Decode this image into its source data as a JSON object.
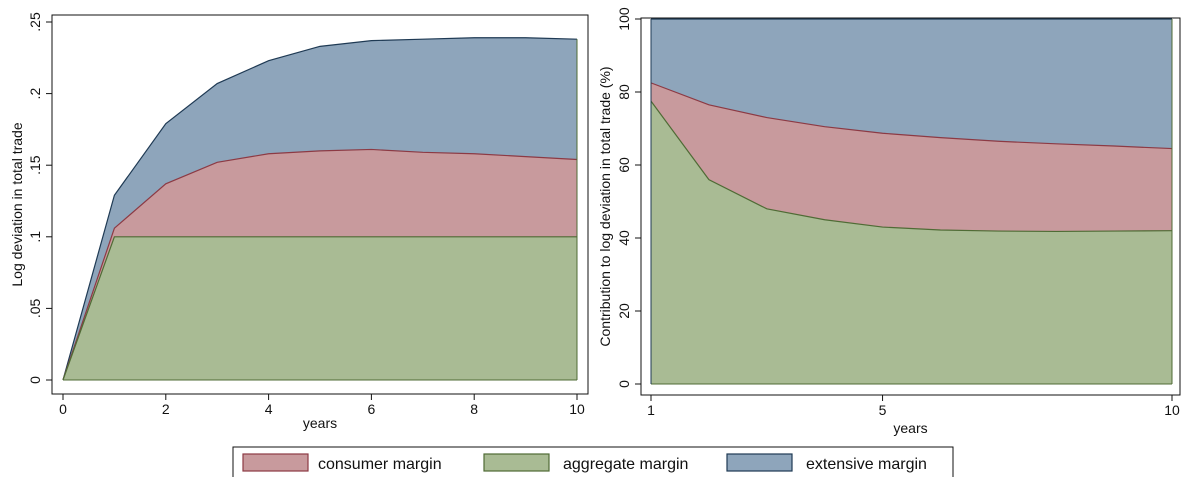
{
  "chart_data": [
    {
      "type": "area",
      "stacked": true,
      "xlabel": "years",
      "ylabel": "Log deviation in total trade",
      "xlim": [
        0,
        10
      ],
      "ylim": [
        0,
        0.25
      ],
      "xticks": [
        0,
        2,
        4,
        6,
        8,
        10
      ],
      "xtick_labels": [
        "0",
        "2",
        "4",
        "6",
        "8",
        "10"
      ],
      "yticks": [
        0,
        0.05,
        0.1,
        0.15,
        0.2,
        0.25
      ],
      "ytick_labels": [
        "0",
        ".05",
        ".1",
        ".15",
        ".2",
        ".25"
      ],
      "grid": false,
      "x": [
        0,
        1,
        2,
        3,
        4,
        5,
        6,
        7,
        8,
        9,
        10
      ],
      "series": [
        {
          "name": "aggregate margin",
          "color": "#a9bb94",
          "line_color": "#4f6b35",
          "cumulative": [
            0,
            0.1,
            0.1,
            0.1,
            0.1,
            0.1,
            0.1,
            0.1,
            0.1,
            0.1,
            0.1
          ]
        },
        {
          "name": "consumer margin",
          "color": "#c89a9d",
          "line_color": "#8c3a44",
          "cumulative": [
            0,
            0.106,
            0.137,
            0.152,
            0.158,
            0.16,
            0.161,
            0.159,
            0.158,
            0.156,
            0.154
          ]
        },
        {
          "name": "extensive margin",
          "color": "#8ea5bb",
          "line_color": "#1f3a54",
          "cumulative": [
            0,
            0.129,
            0.179,
            0.207,
            0.223,
            0.233,
            0.237,
            0.238,
            0.239,
            0.239,
            0.238
          ]
        }
      ]
    },
    {
      "type": "area",
      "stacked": true,
      "xlabel": "years",
      "ylabel": "Contribution to log deviation in total trade (%)",
      "xlim": [
        1,
        10
      ],
      "ylim": [
        0,
        100
      ],
      "xticks": [
        1,
        5,
        10
      ],
      "xtick_labels": [
        "1",
        "5",
        "10"
      ],
      "yticks": [
        0,
        20,
        40,
        60,
        80,
        100
      ],
      "ytick_labels": [
        "0",
        "20",
        "40",
        "60",
        "80",
        "100"
      ],
      "grid": false,
      "x": [
        1,
        2,
        3,
        4,
        5,
        6,
        7,
        8,
        9,
        10
      ],
      "series": [
        {
          "name": "aggregate margin",
          "color": "#a9bb94",
          "line_color": "#4f6b35",
          "cumulative": [
            77.5,
            56,
            48,
            45,
            43,
            42.2,
            41.9,
            41.8,
            41.9,
            42
          ]
        },
        {
          "name": "consumer margin",
          "color": "#c89a9d",
          "line_color": "#8c3a44",
          "cumulative": [
            82.5,
            76.5,
            73,
            70.5,
            68.7,
            67.5,
            66.5,
            65.8,
            65.2,
            64.5
          ]
        },
        {
          "name": "extensive margin",
          "color": "#8ea5bb",
          "line_color": "#1f3a54",
          "cumulative": [
            100,
            100,
            100,
            100,
            100,
            100,
            100,
            100,
            100,
            100
          ]
        }
      ]
    }
  ],
  "legend": {
    "items": [
      {
        "label": "consumer margin",
        "color": "#c89a9d",
        "line_color": "#8c3a44"
      },
      {
        "label": "aggregate margin",
        "color": "#a9bb94",
        "line_color": "#4f6b35"
      },
      {
        "label": "extensive margin",
        "color": "#8ea5bb",
        "line_color": "#1f3a54"
      }
    ]
  }
}
